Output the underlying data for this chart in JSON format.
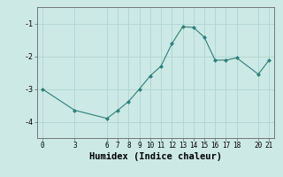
{
  "x": [
    0,
    3,
    6,
    7,
    8,
    9,
    10,
    11,
    12,
    13,
    14,
    15,
    16,
    17,
    18,
    20,
    21
  ],
  "y": [
    -3.0,
    -3.65,
    -3.9,
    -3.65,
    -3.38,
    -3.0,
    -2.6,
    -2.3,
    -1.62,
    -1.1,
    -1.12,
    -1.42,
    -2.12,
    -2.12,
    -2.05,
    -2.55,
    -2.12
  ],
  "xlabel": "Humidex (Indice chaleur)",
  "xlim": [
    -0.5,
    21.5
  ],
  "ylim": [
    -4.5,
    -0.5
  ],
  "yticks": [
    -4,
    -3,
    -2,
    -1
  ],
  "xticks": [
    0,
    3,
    6,
    7,
    8,
    9,
    10,
    11,
    12,
    13,
    14,
    15,
    16,
    17,
    18,
    20,
    21
  ],
  "line_color": "#2d7f7a",
  "marker_color": "#2d7f7a",
  "bg_color": "#cce9e5",
  "grid_color": "#b0d4d0",
  "spine_color": "#666666",
  "tick_label_size": 5.5,
  "xlabel_size": 7.5
}
